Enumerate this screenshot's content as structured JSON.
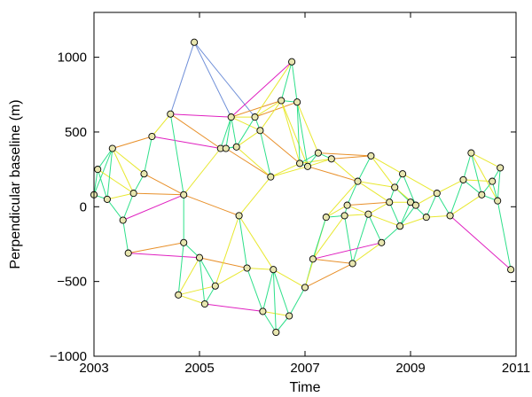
{
  "chart_data": {
    "type": "scatter",
    "title": "",
    "xlabel": "Time",
    "ylabel": "Perpendicular baseline (m)",
    "xlim": [
      2003,
      2011
    ],
    "ylim": [
      -1000,
      1300
    ],
    "x_ticks": [
      2003,
      2005,
      2007,
      2009,
      2011
    ],
    "y_ticks": [
      -1000,
      -500,
      0,
      500,
      1000
    ],
    "x_tick_labels": [
      "2003",
      "2005",
      "2007",
      "2009",
      "2011"
    ],
    "y_tick_labels": [
      "−1000",
      "−500",
      "0",
      "500",
      "1000"
    ],
    "grid": false,
    "edge_colors": {
      "short_temporal": "#2ee08a",
      "medium_temporal": "#e8e830",
      "long_temporal": "#e8902a",
      "longest_temporal": "#e020c0",
      "very_long_temporal": "#6f8fd8"
    },
    "points": [
      {
        "id": 0,
        "x": 2003.0,
        "y": 80
      },
      {
        "id": 1,
        "x": 2003.07,
        "y": 250
      },
      {
        "id": 2,
        "x": 2003.25,
        "y": 50
      },
      {
        "id": 3,
        "x": 2003.35,
        "y": 390
      },
      {
        "id": 4,
        "x": 2003.55,
        "y": -90
      },
      {
        "id": 5,
        "x": 2003.65,
        "y": -310
      },
      {
        "id": 6,
        "x": 2003.75,
        "y": 90
      },
      {
        "id": 7,
        "x": 2003.95,
        "y": 220
      },
      {
        "id": 8,
        "x": 2004.1,
        "y": 470
      },
      {
        "id": 9,
        "x": 2004.45,
        "y": 620
      },
      {
        "id": 10,
        "x": 2004.7,
        "y": 80
      },
      {
        "id": 11,
        "x": 2004.7,
        "y": -240
      },
      {
        "id": 12,
        "x": 2004.6,
        "y": -590
      },
      {
        "id": 13,
        "x": 2004.9,
        "y": 1100
      },
      {
        "id": 14,
        "x": 2005.0,
        "y": -340
      },
      {
        "id": 15,
        "x": 2005.1,
        "y": -650
      },
      {
        "id": 16,
        "x": 2005.3,
        "y": -530
      },
      {
        "id": 17,
        "x": 2005.4,
        "y": 390
      },
      {
        "id": 18,
        "x": 2005.5,
        "y": 390
      },
      {
        "id": 19,
        "x": 2005.6,
        "y": 600
      },
      {
        "id": 20,
        "x": 2005.7,
        "y": 400
      },
      {
        "id": 21,
        "x": 2005.75,
        "y": -60
      },
      {
        "id": 22,
        "x": 2005.9,
        "y": -410
      },
      {
        "id": 23,
        "x": 2006.05,
        "y": 600
      },
      {
        "id": 24,
        "x": 2006.15,
        "y": 510
      },
      {
        "id": 25,
        "x": 2006.2,
        "y": -700
      },
      {
        "id": 26,
        "x": 2006.35,
        "y": 200
      },
      {
        "id": 27,
        "x": 2006.4,
        "y": -420
      },
      {
        "id": 28,
        "x": 2006.45,
        "y": -840
      },
      {
        "id": 29,
        "x": 2006.55,
        "y": 710
      },
      {
        "id": 30,
        "x": 2006.7,
        "y": -730
      },
      {
        "id": 31,
        "x": 2006.75,
        "y": 970
      },
      {
        "id": 32,
        "x": 2006.85,
        "y": 700
      },
      {
        "id": 33,
        "x": 2006.9,
        "y": 290
      },
      {
        "id": 34,
        "x": 2007.0,
        "y": -540
      },
      {
        "id": 35,
        "x": 2007.05,
        "y": 270
      },
      {
        "id": 36,
        "x": 2007.15,
        "y": -350
      },
      {
        "id": 37,
        "x": 2007.25,
        "y": 360
      },
      {
        "id": 38,
        "x": 2007.4,
        "y": -70
      },
      {
        "id": 39,
        "x": 2007.5,
        "y": 320
      },
      {
        "id": 40,
        "x": 2007.75,
        "y": -60
      },
      {
        "id": 41,
        "x": 2007.8,
        "y": 10
      },
      {
        "id": 42,
        "x": 2007.9,
        "y": -380
      },
      {
        "id": 43,
        "x": 2008.0,
        "y": 170
      },
      {
        "id": 44,
        "x": 2008.2,
        "y": -50
      },
      {
        "id": 45,
        "x": 2008.25,
        "y": 340
      },
      {
        "id": 46,
        "x": 2008.45,
        "y": -240
      },
      {
        "id": 47,
        "x": 2008.6,
        "y": 30
      },
      {
        "id": 48,
        "x": 2008.7,
        "y": 130
      },
      {
        "id": 49,
        "x": 2008.8,
        "y": -130
      },
      {
        "id": 50,
        "x": 2008.85,
        "y": 220
      },
      {
        "id": 51,
        "x": 2009.0,
        "y": 30
      },
      {
        "id": 52,
        "x": 2009.1,
        "y": 10
      },
      {
        "id": 53,
        "x": 2009.3,
        "y": -70
      },
      {
        "id": 54,
        "x": 2009.5,
        "y": 90
      },
      {
        "id": 55,
        "x": 2009.75,
        "y": -60
      },
      {
        "id": 56,
        "x": 2010.0,
        "y": 180
      },
      {
        "id": 57,
        "x": 2010.15,
        "y": 360
      },
      {
        "id": 58,
        "x": 2010.35,
        "y": 80
      },
      {
        "id": 59,
        "x": 2010.55,
        "y": 170
      },
      {
        "id": 60,
        "x": 2010.65,
        "y": 40
      },
      {
        "id": 61,
        "x": 2010.7,
        "y": 260
      },
      {
        "id": 62,
        "x": 2010.9,
        "y": -420
      }
    ],
    "edges": [
      [
        0,
        1
      ],
      [
        0,
        2
      ],
      [
        0,
        3
      ],
      [
        1,
        2
      ],
      [
        1,
        3
      ],
      [
        1,
        6
      ],
      [
        2,
        3
      ],
      [
        2,
        4
      ],
      [
        2,
        6
      ],
      [
        3,
        6
      ],
      [
        3,
        7
      ],
      [
        3,
        8
      ],
      [
        4,
        5
      ],
      [
        4,
        6
      ],
      [
        4,
        10
      ],
      [
        5,
        11
      ],
      [
        5,
        14
      ],
      [
        6,
        7
      ],
      [
        6,
        10
      ],
      [
        7,
        8
      ],
      [
        7,
        10
      ],
      [
        8,
        9
      ],
      [
        8,
        17
      ],
      [
        9,
        13
      ],
      [
        9,
        17
      ],
      [
        9,
        19
      ],
      [
        9,
        10
      ],
      [
        10,
        11
      ],
      [
        10,
        17
      ],
      [
        10,
        21
      ],
      [
        11,
        12
      ],
      [
        11,
        14
      ],
      [
        12,
        14
      ],
      [
        12,
        15
      ],
      [
        12,
        16
      ],
      [
        13,
        19
      ],
      [
        13,
        23
      ],
      [
        14,
        15
      ],
      [
        14,
        16
      ],
      [
        14,
        22
      ],
      [
        15,
        16
      ],
      [
        15,
        25
      ],
      [
        16,
        21
      ],
      [
        16,
        22
      ],
      [
        17,
        18
      ],
      [
        17,
        19
      ],
      [
        17,
        20
      ],
      [
        18,
        19
      ],
      [
        18,
        20
      ],
      [
        18,
        26
      ],
      [
        19,
        20
      ],
      [
        19,
        23
      ],
      [
        19,
        24
      ],
      [
        19,
        29
      ],
      [
        20,
        23
      ],
      [
        20,
        24
      ],
      [
        20,
        26
      ],
      [
        21,
        22
      ],
      [
        21,
        26
      ],
      [
        21,
        27
      ],
      [
        22,
        25
      ],
      [
        22,
        27
      ],
      [
        23,
        24
      ],
      [
        23,
        29
      ],
      [
        23,
        31
      ],
      [
        23,
        32
      ],
      [
        24,
        26
      ],
      [
        24,
        29
      ],
      [
        24,
        33
      ],
      [
        25,
        27
      ],
      [
        25,
        28
      ],
      [
        25,
        30
      ],
      [
        26,
        33
      ],
      [
        26,
        35
      ],
      [
        27,
        28
      ],
      [
        27,
        30
      ],
      [
        27,
        34
      ],
      [
        28,
        30
      ],
      [
        29,
        31
      ],
      [
        29,
        32
      ],
      [
        29,
        33
      ],
      [
        29,
        35
      ],
      [
        31,
        32
      ],
      [
        31,
        19
      ],
      [
        32,
        33
      ],
      [
        32,
        35
      ],
      [
        32,
        37
      ],
      [
        33,
        35
      ],
      [
        33,
        37
      ],
      [
        33,
        39
      ],
      [
        34,
        36
      ],
      [
        34,
        30
      ],
      [
        34,
        38
      ],
      [
        35,
        37
      ],
      [
        35,
        39
      ],
      [
        35,
        43
      ],
      [
        36,
        38
      ],
      [
        36,
        42
      ],
      [
        36,
        40
      ],
      [
        37,
        39
      ],
      [
        37,
        45
      ],
      [
        38,
        40
      ],
      [
        38,
        41
      ],
      [
        38,
        43
      ],
      [
        39,
        43
      ],
      [
        39,
        45
      ],
      [
        40,
        41
      ],
      [
        40,
        42
      ],
      [
        40,
        44
      ],
      [
        41,
        43
      ],
      [
        41,
        44
      ],
      [
        41,
        47
      ],
      [
        42,
        44
      ],
      [
        42,
        46
      ],
      [
        43,
        45
      ],
      [
        43,
        47
      ],
      [
        43,
        48
      ],
      [
        44,
        46
      ],
      [
        44,
        47
      ],
      [
        44,
        49
      ],
      [
        45,
        50
      ],
      [
        45,
        48
      ],
      [
        46,
        49
      ],
      [
        47,
        48
      ],
      [
        47,
        49
      ],
      [
        47,
        51
      ],
      [
        48,
        50
      ],
      [
        48,
        51
      ],
      [
        48,
        52
      ],
      [
        49,
        51
      ],
      [
        49,
        52
      ],
      [
        49,
        53
      ],
      [
        50,
        52
      ],
      [
        50,
        54
      ],
      [
        51,
        52
      ],
      [
        51,
        53
      ],
      [
        52,
        54
      ],
      [
        53,
        54
      ],
      [
        53,
        55
      ],
      [
        54,
        55
      ],
      [
        54,
        56
      ],
      [
        55,
        56
      ],
      [
        55,
        58
      ],
      [
        56,
        57
      ],
      [
        56,
        58
      ],
      [
        56,
        59
      ],
      [
        57,
        58
      ],
      [
        57,
        61
      ],
      [
        57,
        60
      ],
      [
        58,
        59
      ],
      [
        58,
        60
      ],
      [
        59,
        61
      ],
      [
        59,
        60
      ],
      [
        60,
        61
      ],
      [
        60,
        62
      ],
      [
        55,
        62
      ],
      [
        42,
        34
      ],
      [
        36,
        46
      ]
    ]
  }
}
